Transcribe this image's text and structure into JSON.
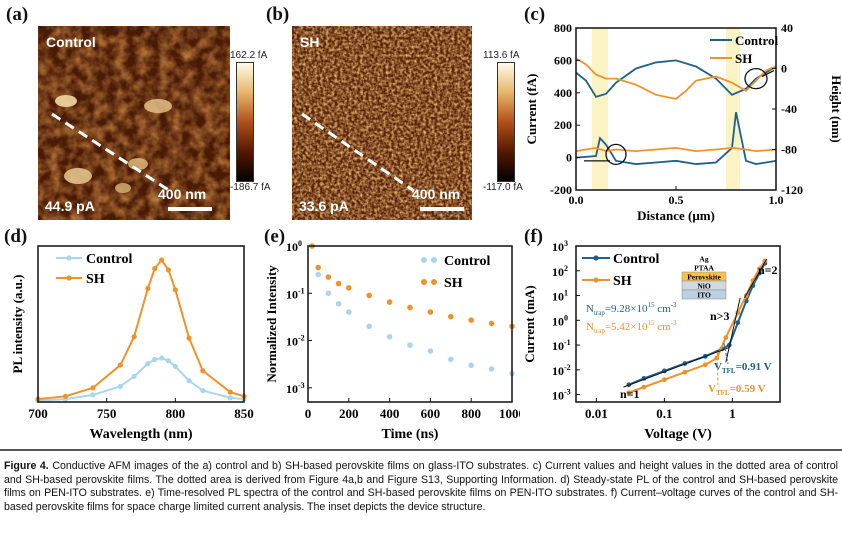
{
  "panel_a": {
    "letter": "(a)",
    "name": "Control",
    "value": "44.9 pA",
    "scale": "400 nm",
    "cbar_max": "162.2 fA",
    "cbar_min": "-186.7 fA"
  },
  "panel_b": {
    "letter": "(b)",
    "name": "SH",
    "value": "33.6 pA",
    "scale": "400 nm",
    "cbar_max": "113.6 fA",
    "cbar_min": "-117.0 fA"
  },
  "panel_c": {
    "letter": "(c)"
  },
  "panel_d": {
    "letter": "(d)"
  },
  "panel_e": {
    "letter": "(e)"
  },
  "panel_f": {
    "letter": "(f)",
    "ntrap_control": "N",
    "ntrap_control_sub": "trap",
    "ntrap_control_val": "=9.28×10",
    "ntrap_control_exp": "15",
    "ntrap_control_unit": " cm",
    "ntrap_control_unitexp": "-3",
    "ntrap_sh_val": "=5.42×10",
    "vtfl_control": "=0.91 V",
    "vtfl_sh": "=0.59 V",
    "vtfl_label": "V",
    "vtfl_sub": "TFL",
    "n1": "n=1",
    "n2": "n=2",
    "n3": "n>3",
    "device_layers": [
      "Ag",
      "PTAA",
      "Perovskite",
      "NiO",
      "ITO"
    ]
  },
  "colors": {
    "control": "#1f5f8b",
    "sh": "#f0922b",
    "control_light": "#a9d6ee",
    "highlight": "#fbf3c4"
  },
  "chart_data": [
    {
      "type": "line",
      "panel": "c",
      "xlabel": "Distance (μm)",
      "ylabel": "Current (fA)",
      "y2label": "Height (nm)",
      "xlim": [
        0.0,
        1.0
      ],
      "ylim": [
        -200,
        800
      ],
      "y2lim": [
        -120,
        40
      ],
      "xticks": [
        "0.0",
        "0.5",
        "1.0"
      ],
      "yticks": [
        "-200",
        "0",
        "200",
        "400",
        "600",
        "800"
      ],
      "y2ticks": [
        "-120",
        "-80",
        "-40",
        "0",
        "40"
      ],
      "legend": "top-right",
      "series": [
        {
          "name": "Control",
          "axis": "height",
          "x": [
            0.0,
            0.05,
            0.1,
            0.15,
            0.2,
            0.3,
            0.4,
            0.5,
            0.6,
            0.7,
            0.78,
            0.85,
            0.9,
            0.95,
            1.0
          ],
          "values": [
            -4,
            -12,
            -28,
            -25,
            -14,
            0,
            6,
            8,
            2,
            -10,
            -26,
            -20,
            -10,
            -4,
            2
          ]
        },
        {
          "name": "SH",
          "axis": "height",
          "x": [
            0.0,
            0.05,
            0.1,
            0.15,
            0.2,
            0.3,
            0.4,
            0.5,
            0.55,
            0.6,
            0.7,
            0.78,
            0.85,
            0.9,
            0.95,
            1.0
          ],
          "values": [
            10,
            4,
            -6,
            -10,
            -10,
            -16,
            -26,
            -30,
            -22,
            -12,
            -8,
            -14,
            -22,
            -12,
            -2,
            2
          ]
        },
        {
          "name": "Control",
          "axis": "current",
          "x": [
            0.0,
            0.1,
            0.12,
            0.15,
            0.2,
            0.3,
            0.4,
            0.5,
            0.6,
            0.7,
            0.78,
            0.8,
            0.85,
            0.9,
            1.0
          ],
          "values": [
            0,
            10,
            120,
            80,
            -20,
            -40,
            -30,
            -20,
            -40,
            -30,
            60,
            280,
            -20,
            -40,
            -20
          ]
        },
        {
          "name": "SH",
          "axis": "current",
          "x": [
            0.0,
            0.1,
            0.15,
            0.2,
            0.3,
            0.4,
            0.5,
            0.6,
            0.7,
            0.78,
            0.85,
            0.9,
            1.0
          ],
          "values": [
            40,
            60,
            40,
            50,
            40,
            50,
            60,
            40,
            50,
            60,
            50,
            40,
            50
          ]
        }
      ],
      "annotations": {
        "highlight_bands_x": [
          [
            0.08,
            0.16
          ],
          [
            0.75,
            0.82
          ]
        ]
      }
    },
    {
      "type": "line",
      "panel": "d",
      "xlabel": "Wavelength (nm)",
      "ylabel": "PL intensity (a.u.)",
      "xlim": [
        700,
        850
      ],
      "xticks": [
        "700",
        "750",
        "800",
        "850"
      ],
      "legend": "top-left",
      "series": [
        {
          "name": "Control",
          "x": [
            700,
            720,
            740,
            760,
            770,
            780,
            785,
            790,
            795,
            800,
            810,
            820,
            840,
            850
          ],
          "values": [
            0.01,
            0.02,
            0.05,
            0.11,
            0.18,
            0.27,
            0.3,
            0.31,
            0.29,
            0.25,
            0.15,
            0.08,
            0.03,
            0.02
          ]
        },
        {
          "name": "SH",
          "x": [
            700,
            720,
            740,
            760,
            770,
            780,
            785,
            790,
            795,
            800,
            810,
            820,
            840,
            850
          ],
          "values": [
            0.02,
            0.04,
            0.1,
            0.26,
            0.46,
            0.8,
            0.94,
            1.0,
            0.93,
            0.79,
            0.45,
            0.22,
            0.07,
            0.04
          ]
        }
      ]
    },
    {
      "type": "scatter",
      "panel": "e",
      "xlabel": "Time (ns)",
      "ylabel": "Normalized Intensity",
      "xlim": [
        0,
        1000
      ],
      "ylim": [
        0.0005,
        1
      ],
      "yscale": "log",
      "xticks": [
        "0",
        "200",
        "400",
        "600",
        "800",
        "1000"
      ],
      "yticks": [
        "10-3",
        "10-2",
        "10-1",
        "100"
      ],
      "legend": "top-right",
      "series": [
        {
          "name": "Control",
          "x": [
            20,
            50,
            100,
            150,
            200,
            300,
            400,
            500,
            600,
            700,
            800,
            900,
            1000
          ],
          "values": [
            1.0,
            0.25,
            0.1,
            0.06,
            0.04,
            0.02,
            0.012,
            0.008,
            0.006,
            0.004,
            0.003,
            0.0025,
            0.002
          ]
        },
        {
          "name": "SH",
          "x": [
            20,
            50,
            100,
            150,
            200,
            300,
            400,
            500,
            600,
            700,
            800,
            900,
            1000
          ],
          "values": [
            1.0,
            0.35,
            0.22,
            0.16,
            0.13,
            0.09,
            0.065,
            0.05,
            0.04,
            0.032,
            0.027,
            0.023,
            0.02
          ]
        }
      ]
    },
    {
      "type": "line",
      "panel": "f",
      "xlabel": "Voltage (V)",
      "ylabel": "Current (mA)",
      "xscale": "log",
      "yscale": "log",
      "xticks": [
        "0.01",
        "0.1",
        "1"
      ],
      "yticks": [
        "10-3",
        "10-2",
        "10-1",
        "100",
        "101",
        "102",
        "103"
      ],
      "legend": "top-left",
      "series": [
        {
          "name": "Control",
          "x": [
            0.03,
            0.05,
            0.1,
            0.2,
            0.4,
            0.7,
            0.9,
            1.2,
            1.6,
            2.0,
            2.5,
            3.0
          ],
          "values": [
            0.0025,
            0.0045,
            0.009,
            0.018,
            0.035,
            0.07,
            0.1,
            0.8,
            6,
            25,
            80,
            200
          ]
        },
        {
          "name": "SH",
          "x": [
            0.03,
            0.05,
            0.1,
            0.2,
            0.4,
            0.59,
            0.8,
            1.2,
            1.6,
            2.0,
            2.5,
            3.0
          ],
          "values": [
            0.0012,
            0.002,
            0.004,
            0.008,
            0.016,
            0.03,
            0.2,
            2,
            10,
            40,
            120,
            250
          ]
        }
      ]
    }
  ],
  "caption": {
    "label": "Figure 4.",
    "text": "Conductive AFM images of the a) control and b) SH-based perovskite films on glass-ITO substrates. c) Current values and height values in the dotted area of control and SH-based perovskite films. The dotted area is derived from Figure 4a,b and Figure S13, Supporting Information. d) Steady-state PL of the control and SH-based perovskite films on PEN-ITO substrates. e) Time-resolved PL spectra of the control and SH-based perovskite films on PEN-ITO substrates. f) Current–voltage curves of the control and SH-based perovskite films for space charge limited current analysis. The inset depicts the device structure."
  }
}
